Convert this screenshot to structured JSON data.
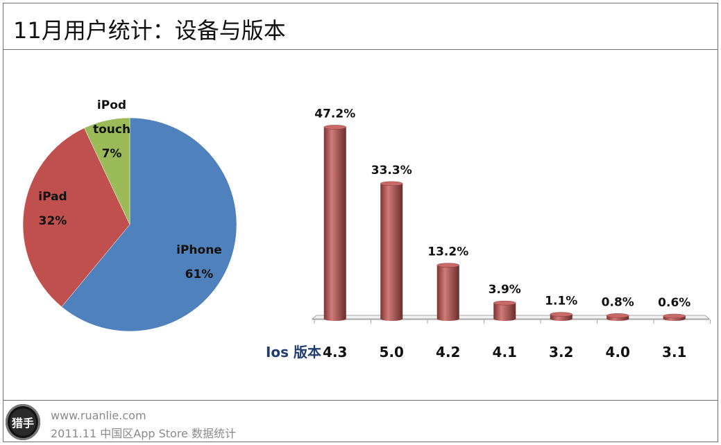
{
  "header": {
    "title": "11月用户统计：设备与版本"
  },
  "footer": {
    "logo_text": "猎手",
    "site": "www.ruanlie.com",
    "caption": "2011.11 中国区App Store 数据统计"
  },
  "chart_data": [
    {
      "type": "pie",
      "slices": [
        {
          "name": "iPhone",
          "label_lines": [
            "iPhone"
          ],
          "value": 61,
          "display": "61%",
          "color": "#4f81bd"
        },
        {
          "name": "iPad",
          "label_lines": [
            "iPad"
          ],
          "value": 32,
          "display": "32%",
          "color": "#c0504d"
        },
        {
          "name": "iPod touch",
          "label_lines": [
            "iPod",
            "touch"
          ],
          "value": 7,
          "display": "7%",
          "color": "#9bbb59"
        }
      ]
    },
    {
      "type": "bar",
      "xlabel": "Ios 版本",
      "categories": [
        "4.3",
        "5.0",
        "4.2",
        "4.1",
        "3.2",
        "4.0",
        "3.1"
      ],
      "values": [
        47.2,
        33.3,
        13.2,
        3.9,
        1.1,
        0.8,
        0.6
      ],
      "data_labels": [
        "47.2%",
        "33.3%",
        "13.2%",
        "3.9%",
        "1.1%",
        "0.8%",
        "0.6%"
      ],
      "ylim": [
        0,
        50
      ],
      "color": "#c0504d"
    }
  ]
}
